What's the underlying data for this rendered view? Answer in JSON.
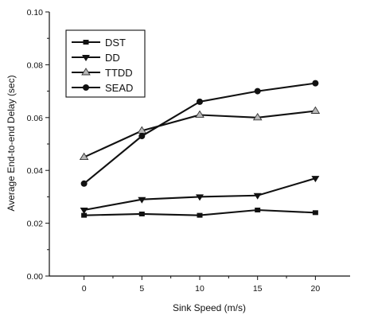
{
  "chart_data": {
    "type": "line",
    "title": "",
    "xlabel": "Sink Speed (m/s)",
    "ylabel": "Average End-to-end Delay (sec)",
    "x": [
      0,
      5,
      10,
      15,
      20
    ],
    "xlim": [
      -3,
      23
    ],
    "ylim": [
      0,
      0.1
    ],
    "x_ticks": [
      "0",
      "5",
      "10",
      "15",
      "20"
    ],
    "y_ticks": [
      "0.00",
      "0.02",
      "0.04",
      "0.06",
      "0.08",
      "0.10"
    ],
    "x_tick_values": [
      0,
      5,
      10,
      15,
      20
    ],
    "y_tick_values": [
      0,
      0.02,
      0.04,
      0.06,
      0.08,
      0.1
    ],
    "grid": false,
    "legend_position": "top-left",
    "series": [
      {
        "name": "DST",
        "values": [
          0.023,
          0.0235,
          0.023,
          0.025,
          0.024
        ],
        "marker": "square",
        "color": "#111111"
      },
      {
        "name": "DD",
        "values": [
          0.025,
          0.029,
          0.03,
          0.0305,
          0.037
        ],
        "marker": "triangle-down",
        "color": "#111111"
      },
      {
        "name": "TTDD",
        "values": [
          0.045,
          0.055,
          0.061,
          0.06,
          0.0625
        ],
        "marker": "triangle-up",
        "color": "#111111"
      },
      {
        "name": "SEAD",
        "values": [
          0.035,
          0.053,
          0.066,
          0.07,
          0.073
        ],
        "marker": "circle",
        "color": "#111111"
      }
    ]
  }
}
